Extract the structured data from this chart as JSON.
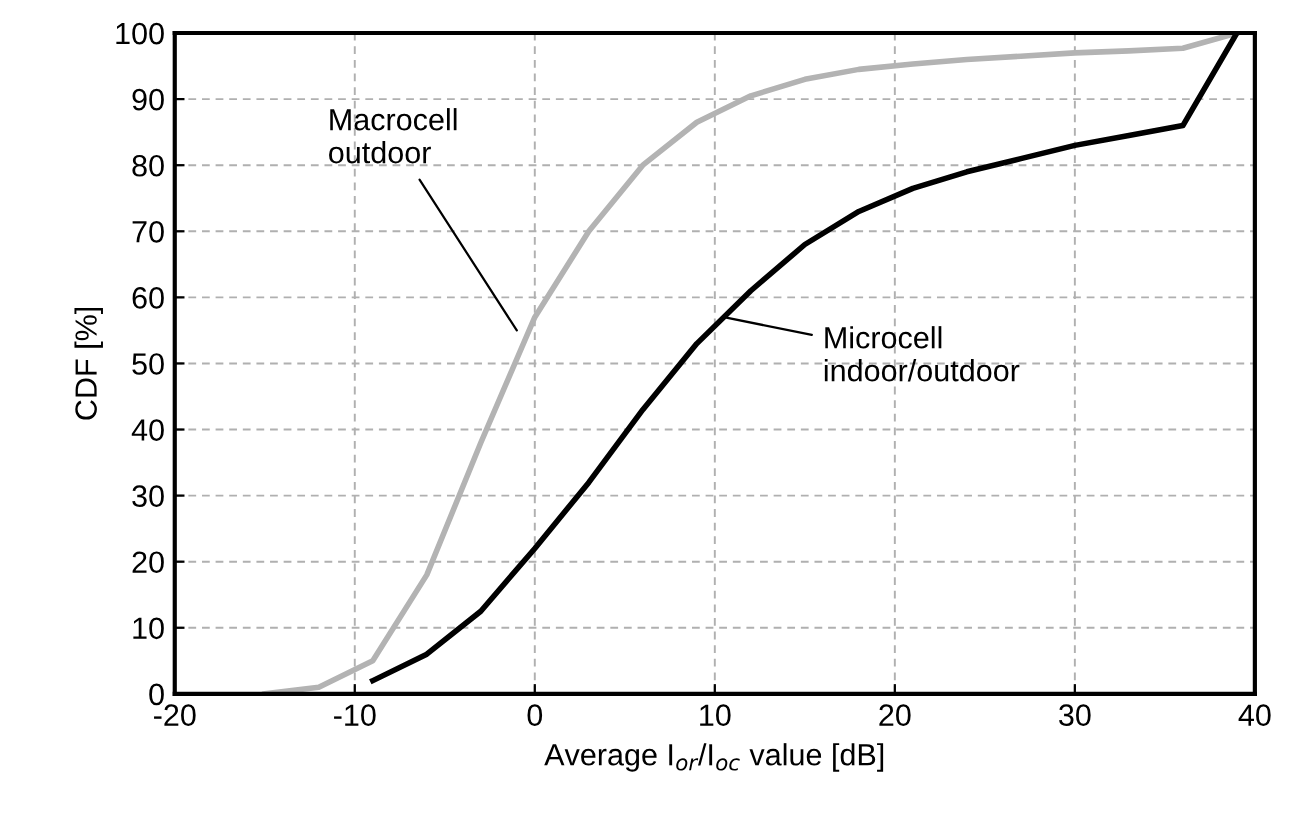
{
  "chart_data": {
    "type": "line",
    "xlabel": "Average I$_{or}$/I$_{oc}$ value [dB]",
    "ylabel": "CDF [%]",
    "xlim": [
      -20,
      40
    ],
    "xticks": [
      -20,
      -10,
      0,
      10,
      20,
      30,
      40
    ],
    "ylim": [
      0,
      100
    ],
    "yticks": [
      0,
      10,
      20,
      30,
      40,
      50,
      60,
      70,
      80,
      90,
      100
    ],
    "grid": true,
    "legend": false,
    "marker": "none",
    "line_style": "solid",
    "series": [
      {
        "color": "#b3b3b3",
        "x": [
          -15,
          -12,
          -9,
          -6,
          -3,
          0,
          3,
          6,
          9,
          12,
          15,
          18,
          21,
          24,
          27,
          30,
          33,
          36,
          39
        ],
        "values": [
          0,
          1,
          5,
          18,
          38,
          57,
          70,
          80,
          86.5,
          90.5,
          93,
          94.5,
          95.3,
          96,
          96.5,
          97,
          97.3,
          97.7,
          100
        ]
      },
      {
        "color": "#000000",
        "x": [
          -9,
          -6,
          -3,
          0,
          3,
          6,
          9,
          12,
          15,
          18,
          21,
          24,
          27,
          30,
          33,
          36,
          39
        ],
        "values": [
          2,
          6,
          12.5,
          22,
          32,
          43,
          53,
          61,
          68,
          73,
          76.5,
          79,
          81,
          83,
          84.5,
          86,
          100
        ]
      }
    ],
    "annotations": [
      {
        "text": "Macrocell\noutdoor",
        "x": -1,
        "y": 55
      },
      {
        "text": "Microcell\nindoor/outdoor",
        "x": 10.5,
        "y": 57
      }
    ]
  }
}
